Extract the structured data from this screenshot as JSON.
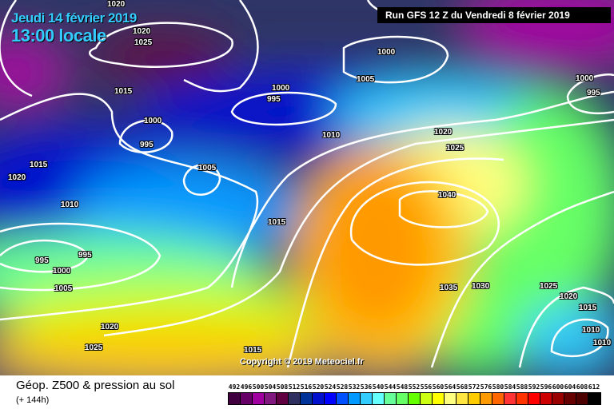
{
  "header": {
    "date": "Jeudi 14 février 2019",
    "time": "13:00 locale",
    "run": "Run GFS 12 Z du Vendredi 8 février 2019"
  },
  "copyright": "Copyright © 2019 Meteociel.fr",
  "footer": {
    "title": "Géop. Z500 & pression au sol",
    "subtitle": "(+ 144h)"
  },
  "legend": {
    "labels": [
      "492",
      "496",
      "500",
      "504",
      "508",
      "512",
      "516",
      "520",
      "524",
      "528",
      "532",
      "536",
      "540",
      "544",
      "548",
      "552",
      "556",
      "560",
      "564",
      "568",
      "572",
      "576",
      "580",
      "584",
      "588",
      "592",
      "596",
      "600",
      "604",
      "608",
      "612"
    ],
    "colors": [
      "#400040",
      "#660066",
      "#a000a0",
      "#801880",
      "#600040",
      "#303060",
      "#003399",
      "#0010cc",
      "#0000ff",
      "#0050ff",
      "#0099ff",
      "#33ccff",
      "#66ffff",
      "#66ff99",
      "#66ff66",
      "#66ff00",
      "#ccff11",
      "#ffff00",
      "#ffff80",
      "#ffe640",
      "#ffcc00",
      "#ff9900",
      "#ff6600",
      "#ff3333",
      "#ff3300",
      "#ff0000",
      "#cc0000",
      "#990000",
      "#660000",
      "#4d0000",
      "#000000"
    ]
  },
  "isobar_labels": [
    "1020",
    "1020",
    "1025",
    "1015",
    "1000",
    "995",
    "1005",
    "1015",
    "1020",
    "1010",
    "995",
    "995",
    "1000",
    "1005",
    "1020",
    "1025",
    "1000",
    "995",
    "1000",
    "1005",
    "1010",
    "1015",
    "1020",
    "1025",
    "1040",
    "1035",
    "1030",
    "1025",
    "1020",
    "1015",
    "1010",
    "1010",
    "1000",
    "995",
    "1015"
  ]
}
